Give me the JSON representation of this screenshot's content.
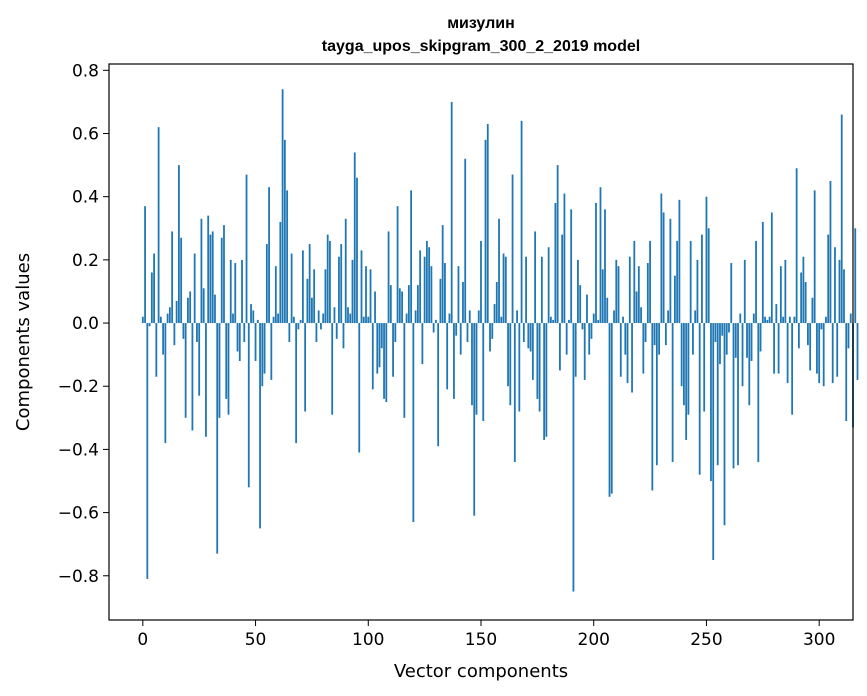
{
  "chart_data": {
    "type": "bar",
    "title": "мизулин",
    "subtitle": "tayga_upos_skipgram_300_2_2019 model",
    "xlabel": "Vector components",
    "ylabel": "Components values",
    "xlim": [
      -15,
      315
    ],
    "ylim": [
      -0.94,
      0.82
    ],
    "x_ticks": [
      0,
      50,
      100,
      150,
      200,
      250,
      300
    ],
    "y_ticks": [
      -0.8,
      -0.6,
      -0.4,
      -0.2,
      0.0,
      0.2,
      0.4,
      0.6,
      0.8
    ],
    "y_tick_labels": [
      "−0.8",
      "−0.6",
      "−0.4",
      "−0.2",
      "0.0",
      "0.2",
      "0.4",
      "0.6",
      "0.8"
    ],
    "color": "#1f77b4",
    "grid": false,
    "values": [
      0.02,
      0.37,
      -0.81,
      -0.01,
      0.16,
      0.22,
      -0.17,
      0.62,
      0.02,
      -0.1,
      -0.38,
      0.03,
      0.05,
      0.29,
      -0.07,
      0.07,
      0.5,
      0.27,
      -0.05,
      -0.3,
      0.08,
      0.1,
      -0.34,
      0.22,
      -0.06,
      -0.23,
      0.33,
      0.11,
      -0.36,
      0.34,
      0.28,
      0.29,
      0.09,
      -0.73,
      -0.3,
      0.27,
      0.31,
      -0.24,
      -0.29,
      0.2,
      0.03,
      0.19,
      -0.09,
      -0.12,
      0.2,
      -0.06,
      0.47,
      -0.52,
      0.06,
      0.04,
      -0.12,
      0.01,
      -0.65,
      -0.2,
      -0.16,
      0.25,
      0.43,
      -0.18,
      0.02,
      0.18,
      0.03,
      0.32,
      0.74,
      0.58,
      0.42,
      -0.06,
      0.22,
      0.02,
      -0.38,
      -0.02,
      0.01,
      0.23,
      -0.28,
      0.14,
      0.25,
      0.08,
      0.17,
      -0.06,
      0.04,
      -0.02,
      0.03,
      0.17,
      0.28,
      0.26,
      -0.29,
      0.05,
      -0.05,
      0.21,
      0.25,
      -0.08,
      0.33,
      0.05,
      0.03,
      0.2,
      0.54,
      0.46,
      -0.41,
      0.23,
      0.02,
      0.18,
      0.02,
      0.17,
      -0.21,
      0.1,
      -0.16,
      -0.14,
      -0.08,
      -0.24,
      -0.25,
      0.29,
      0.12,
      -0.17,
      -0.06,
      0.37,
      0.11,
      0.1,
      -0.3,
      0.03,
      0.12,
      0.42,
      -0.63,
      0.04,
      0.12,
      0.23,
      -0.13,
      0.21,
      0.26,
      0.24,
      0.18,
      -0.03,
      0.01,
      -0.39,
      0.14,
      0.31,
      0.19,
      -0.21,
      0.03,
      0.7,
      -0.24,
      -0.04,
      0.18,
      -0.1,
      0.13,
      0.52,
      -0.06,
      0.04,
      -0.26,
      -0.61,
      -0.29,
      0.04,
      0.26,
      -0.31,
      0.58,
      0.63,
      -0.09,
      -0.05,
      0.06,
      0.13,
      0.33,
      0.02,
      0.22,
      0.21,
      -0.2,
      -0.26,
      0.47,
      -0.44,
      0.04,
      -0.28,
      0.64,
      -0.06,
      0.21,
      -0.08,
      -0.09,
      -0.18,
      0.29,
      -0.24,
      -0.28,
      0.21,
      -0.37,
      -0.36,
      0.24,
      0.02,
      0.01,
      0.38,
      0.5,
      -0.15,
      0.28,
      0.41,
      -0.1,
      0.01,
      0.36,
      -0.85,
      -0.17,
      0.2,
      0.12,
      -0.02,
      -0.18,
      0.09,
      -0.1,
      -0.05,
      0.03,
      0.38,
      0.01,
      0.43,
      0.17,
      0.36,
      0.08,
      -0.55,
      -0.54,
      0.04,
      0.2,
      0.18,
      -0.17,
      0.02,
      -0.1,
      -0.19,
      0.21,
      -0.22,
      0.26,
      0.1,
      0.18,
      0.05,
      -0.16,
      -0.06,
      0.19,
      0.26,
      -0.53,
      -0.07,
      -0.45,
      -0.1,
      0.41,
      0.35,
      -0.07,
      0.04,
      0.33,
      -0.44,
      0.15,
      0.26,
      0.39,
      -0.2,
      -0.26,
      -0.37,
      -0.29,
      0.26,
      -0.1,
      0.04,
      0.2,
      -0.48,
      0.28,
      -0.28,
      0.4,
      0.3,
      -0.5,
      -0.75,
      -0.06,
      -0.45,
      -0.13,
      -0.04,
      -0.64,
      -0.1,
      -0.03,
      0.19,
      -0.46,
      -0.11,
      -0.45,
      0.03,
      -0.2,
      0.2,
      -0.11,
      -0.26,
      -0.12,
      0.03,
      0.26,
      -0.44,
      -0.09,
      0.32,
      0.02,
      0.01,
      0.02,
      0.35,
      -0.16,
      0.06,
      -0.16,
      0.18,
      0.02,
      0.2,
      -0.19,
      0.02,
      -0.29,
      0.02,
      0.49,
      -0.08,
      0.16,
      0.21,
      0.13,
      -0.07,
      -0.15,
      0.08,
      0.42,
      -0.16,
      -0.19,
      -0.02,
      -0.2,
      0.02,
      0.28,
      0.45,
      -0.19,
      0.24,
      -0.17,
      0.2,
      0.66,
      0.17,
      -0.31,
      -0.08,
      0.03,
      -0.33,
      0.3,
      -0.18
    ]
  }
}
